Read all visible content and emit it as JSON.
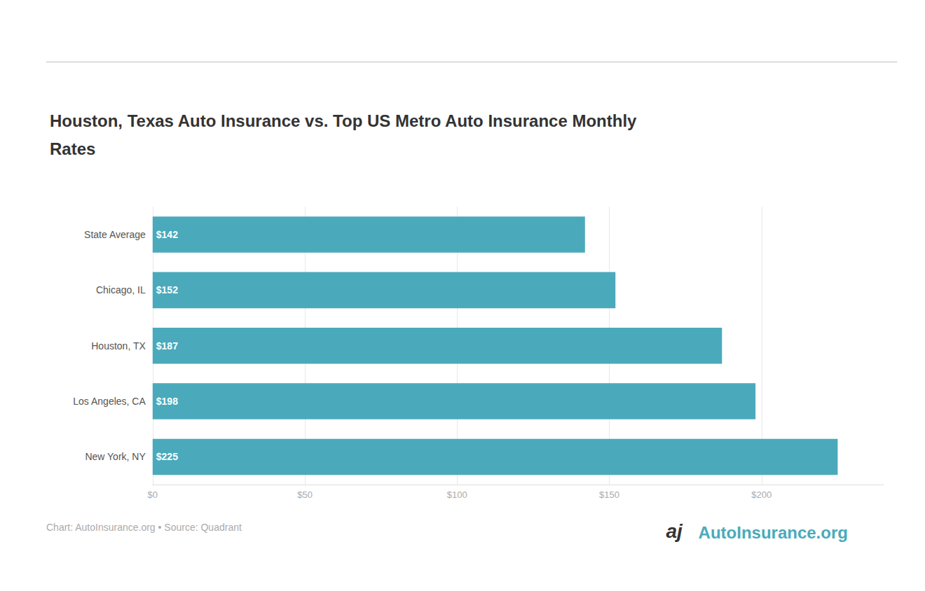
{
  "chart_data": {
    "type": "bar",
    "orientation": "horizontal",
    "title": "Houston, Texas Auto Insurance vs. Top US Metro Auto Insurance Monthly\nRates",
    "categories": [
      "State Average",
      "Chicago, IL",
      "Houston, TX",
      "Los Angeles, CA",
      "New York, NY"
    ],
    "values": [
      142,
      152,
      187,
      198,
      225
    ],
    "value_labels": [
      "$142",
      "$152",
      "$187",
      "$198",
      "$225"
    ],
    "data_labels": true,
    "color": "#4aaabb",
    "xlim": [
      0,
      240
    ],
    "xticks": [
      {
        "value": 0,
        "label": "$0"
      },
      {
        "value": 50,
        "label": "$50"
      },
      {
        "value": 100,
        "label": "$100"
      },
      {
        "value": 150,
        "label": "$150"
      },
      {
        "value": 200,
        "label": "$200"
      }
    ],
    "grid": true,
    "annotations": [
      {
        "text": "Chart: AutoInsurance.org • Source: Quadrant",
        "color": "#aaaaaa"
      },
      {
        "text": "aj",
        "color": "#333333"
      },
      {
        "text": "AutoInsurance.org",
        "color": "#4aaabb"
      }
    ]
  }
}
